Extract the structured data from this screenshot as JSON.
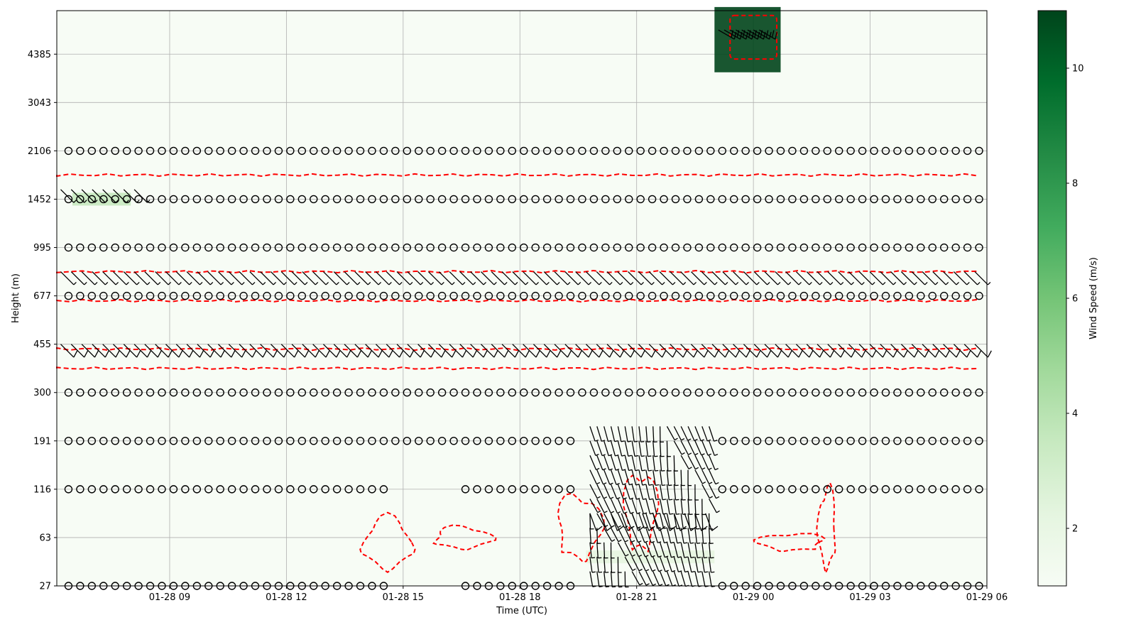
{
  "chart_data": {
    "type": "heatmap",
    "title": "",
    "xlabel": "Time (UTC)",
    "ylabel": "Height (m)",
    "x_ticks": [
      "01-28 09",
      "01-28 12",
      "01-28 15",
      "01-28 18",
      "01-28 21",
      "01-29 00",
      "01-29 03",
      "01-29 06"
    ],
    "y_ticks": [
      "27",
      "63",
      "116",
      "191",
      "300",
      "455",
      "677",
      "995",
      "1452",
      "2106",
      "3043",
      "4385"
    ],
    "x_range_hours": [
      6.1,
      30.0
    ],
    "y_range_levels": [
      0,
      11.9
    ],
    "grid": true,
    "colorbar": {
      "label": "Wind Speed (m/s)",
      "ticks": [
        "2",
        "4",
        "6",
        "8",
        "10"
      ],
      "range": [
        1.0,
        11.0
      ],
      "colormap": [
        "#f7fcf5",
        "#e5f5e0",
        "#c7e9c0",
        "#a1d99b",
        "#74c476",
        "#41ab5d",
        "#238b45",
        "#006d2c",
        "#00441b"
      ]
    },
    "contour_color": "#ff0000",
    "calm_levels": [
      0,
      2,
      3,
      4,
      6,
      7,
      8,
      9
    ],
    "calm_marker": "circle",
    "high_wind_patches": [
      {
        "t0": 6.5,
        "t1": 8.0,
        "level": 8.0,
        "speed": 3.2
      },
      {
        "t0": 23.0,
        "t1": 24.7,
        "level": 11.3,
        "speed": 10.8
      },
      {
        "t0": 19.7,
        "t1": 23.0,
        "level": 0.6,
        "speed": 1.8
      }
    ],
    "wind_barb_layers": [
      {
        "level": 5.0,
        "direction_deg": 315,
        "speed_ms": 5,
        "t0": 6.2,
        "t1": 29.8
      },
      {
        "level": 6.5,
        "direction_deg": 315,
        "speed_ms": 3,
        "t0": 6.2,
        "t1": 29.8
      },
      {
        "level": 8.2,
        "direction_deg": 315,
        "speed_ms": 4,
        "t0": 6.2,
        "t1": 8.2
      },
      {
        "level": 11.5,
        "direction_deg": 300,
        "speed_ms": 10,
        "t0": 23.1,
        "t1": 24.2
      },
      {
        "level": 1.5,
        "direction_deg": 340,
        "speed_ms": 5,
        "t0": 19.8,
        "t1": 22.8
      }
    ]
  }
}
